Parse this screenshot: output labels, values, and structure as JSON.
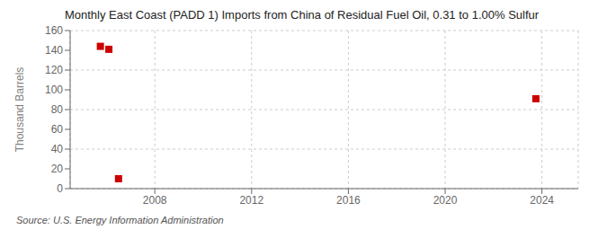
{
  "chart_data": {
    "type": "scatter",
    "title": "Monthly East Coast (PADD 1) Imports from China of Residual Fuel Oil, 0.31 to 1.00% Sulfur",
    "ylabel": "Thousand Barrels",
    "source": "Source: U.S. Energy Information Administration",
    "x": [
      2005.75,
      2006.1,
      2006.5,
      2023.75
    ],
    "values": [
      144,
      141,
      10,
      91
    ],
    "color": "#cc0000",
    "marker": "square",
    "xlim": [
      2004.5,
      2025.5
    ],
    "xticks": [
      2008,
      2012,
      2016,
      2020,
      2024
    ],
    "ylim": [
      0,
      160
    ],
    "yticks": [
      0,
      20,
      40,
      60,
      80,
      100,
      120,
      140,
      160
    ],
    "grid": true
  }
}
